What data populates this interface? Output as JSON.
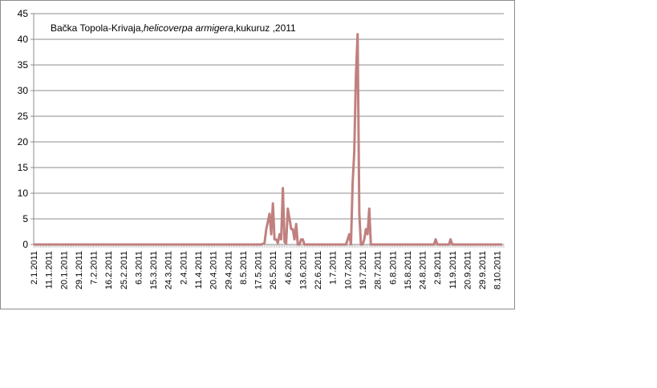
{
  "chart_data": {
    "type": "line",
    "title_parts": [
      {
        "text": "Bačka Topola-Krivaja,",
        "italic": false
      },
      {
        "text": "helicoverpa armigera",
        "italic": true
      },
      {
        "text": ",kukuruz ,2011",
        "italic": false
      }
    ],
    "xlabel": "",
    "ylabel": "",
    "ylim": [
      0,
      45
    ],
    "y_ticks": [
      "0",
      "5",
      "10",
      "15",
      "20",
      "25",
      "30",
      "35",
      "40",
      "45"
    ],
    "x_tick_labels": [
      "2.1.2011",
      "11.1.2011",
      "20.1.2011",
      "29.1.2011",
      "7.2.2011",
      "16.2.2011",
      "25.2.2011",
      "6.3.2011",
      "15.3.2011",
      "24.3.2011",
      "2.4.2011",
      "11.4.2011",
      "20.4.2011",
      "29.4.2011",
      "8.5.2011",
      "17.5.2011",
      "26.5.2011",
      "4.6.2011",
      "13.6.2011",
      "22.6.2011",
      "1.7.2011",
      "10.7.2011",
      "19.7.2011",
      "28.7.2011",
      "6.8.2011",
      "15.8.2011",
      "24.8.2011",
      "2.9.2011",
      "11.9.2011",
      "20.9.2011",
      "29.9.2011",
      "8.10.2011"
    ],
    "x_range": [
      "2.1.2011",
      "12.10.2011"
    ],
    "gridlines": "horizontal",
    "legend": "none",
    "line_color": "#c0807f",
    "series": [
      {
        "x": [
          "2.1.2011",
          "17.5.2011",
          "19.5.2011",
          "21.5.2011",
          "22.5.2011",
          "23.5.2011",
          "24.5.2011",
          "25.5.2011",
          "26.5.2011",
          "27.5.2011",
          "28.5.2011",
          "29.5.2011",
          "30.5.2011",
          "31.5.2011",
          "1.6.2011",
          "2.6.2011",
          "3.6.2011",
          "4.6.2011",
          "5.6.2011",
          "6.6.2011",
          "7.6.2011",
          "8.6.2011",
          "9.6.2011",
          "10.6.2011",
          "11.6.2011",
          "12.6.2011",
          "13.6.2011",
          "14.6.2011",
          "15.6.2011",
          "16.6.2011",
          "20.6.2011",
          "5.7.2011",
          "7.7.2011",
          "8.7.2011",
          "9.7.2011",
          "10.7.2011",
          "11.7.2011",
          "12.7.2011",
          "13.7.2011",
          "14.7.2011",
          "15.7.2011",
          "16.7.2011",
          "17.7.2011",
          "18.7.2011",
          "19.7.2011",
          "20.7.2011",
          "21.7.2011",
          "22.7.2011",
          "23.7.2011",
          "24.7.2011",
          "25.7.2011",
          "28.7.2011",
          "31.8.2011",
          "1.9.2011",
          "2.9.2011",
          "7.9.2011",
          "8.9.2011",
          "9.9.2011",
          "10.9.2011",
          "11.9.2011",
          "11.10.2011"
        ],
        "values": [
          0,
          0,
          0,
          0.3,
          3,
          4.5,
          6,
          2,
          8,
          1,
          1,
          0.3,
          2,
          1,
          11,
          0.5,
          0.2,
          7,
          5,
          3,
          3,
          1,
          4,
          0,
          0,
          1,
          1,
          0,
          0,
          0,
          0,
          0,
          0,
          0,
          0,
          1,
          2,
          0,
          12,
          18,
          33,
          41,
          6,
          0,
          0,
          1,
          3,
          2,
          7,
          0,
          0,
          0,
          0,
          1,
          0,
          0,
          0,
          0,
          1,
          0,
          0
        ]
      }
    ]
  }
}
